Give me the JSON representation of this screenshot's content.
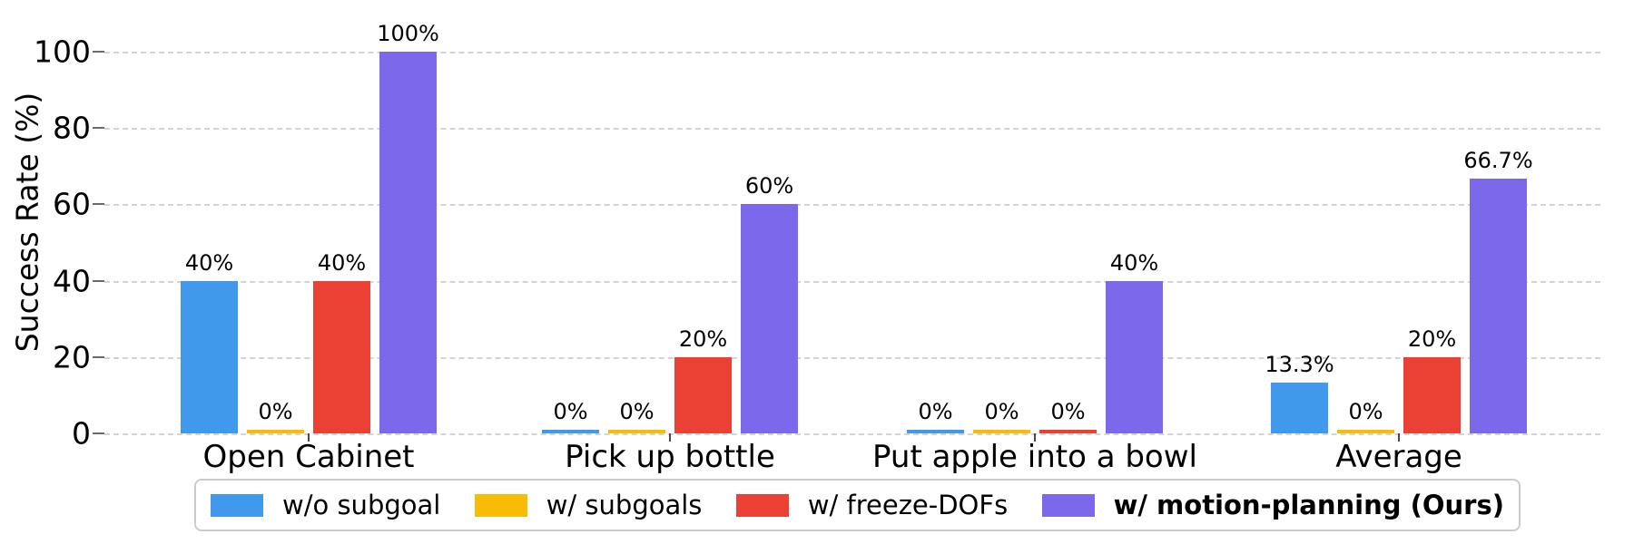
{
  "chart_data": {
    "type": "bar",
    "title": "",
    "ylabel": "Success Rate (%)",
    "xlabel": "",
    "ylim": [
      0,
      100
    ],
    "yticks": [
      0,
      20,
      40,
      60,
      80,
      100
    ],
    "grid": "horizontal dashed gridlines",
    "legend_position": "bottom",
    "categories": [
      "Open Cabinet",
      "Pick up bottle",
      "Put apple into a bowl",
      "Average"
    ],
    "series": [
      {
        "name": "w/o subgoal",
        "color": "#4199EC",
        "emphasis": false,
        "values": [
          40,
          0,
          0,
          13.3
        ],
        "bar_labels": [
          "40%",
          "0%",
          "0%",
          "13.3%"
        ]
      },
      {
        "name": "w/ subgoals",
        "color": "#F9BC06",
        "emphasis": false,
        "values": [
          0,
          0,
          0,
          0
        ],
        "bar_labels": [
          "0%",
          "0%",
          "0%",
          "0%"
        ]
      },
      {
        "name": "w/ freeze-DOFs",
        "color": "#EB4034",
        "emphasis": false,
        "values": [
          40,
          20,
          0,
          20
        ],
        "bar_labels": [
          "40%",
          "20%",
          "0%",
          "20%"
        ]
      },
      {
        "name": "w/ motion-planning (Ours)",
        "color": "#7C68EA",
        "emphasis": true,
        "values": [
          100,
          60,
          40,
          66.7
        ],
        "bar_labels": [
          "100%",
          "60%",
          "40%",
          "66.7%"
        ]
      }
    ]
  }
}
